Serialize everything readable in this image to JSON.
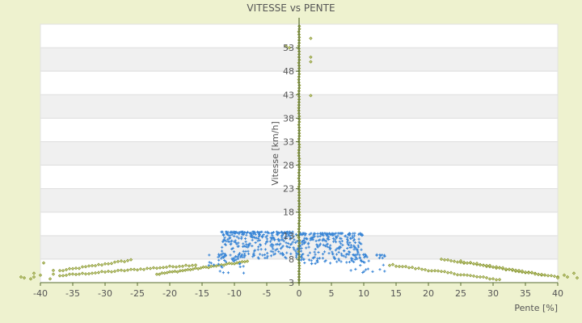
{
  "chart_data": {
    "type": "scatter",
    "title": "VITESSE vs PENTE",
    "xlabel": "Pente [%]",
    "ylabel": "Vitesse [km/h]",
    "xlim": [
      -40,
      40
    ],
    "ylim": [
      3,
      58
    ],
    "xticks": [
      -40,
      -35,
      -30,
      -25,
      -20,
      -15,
      -10,
      -5,
      0,
      5,
      10,
      15,
      20,
      25,
      30,
      35,
      40
    ],
    "yticks": [
      3,
      8,
      13,
      18,
      23,
      28,
      33,
      38,
      43,
      48,
      53
    ],
    "grid": "horizontal bands",
    "legend": "none",
    "colors": {
      "background": "#eef2cf",
      "plot_band_light": "#ffffff",
      "plot_band_dark": "#f0f0f0",
      "gridline": "#dddddd",
      "axis": "#556b2f",
      "series_blue": "#3a86d6",
      "series_olive": "#7a8a1a"
    },
    "series": [
      {
        "color": "#3a86d6",
        "marker": "plus",
        "clusters": [
          {
            "x_range": [
              -12,
              0
            ],
            "y_range": [
              8,
              13.8
            ],
            "count": 300
          },
          {
            "x_range": [
              0,
              10
            ],
            "y_range": [
              7,
              13.5
            ],
            "count": 260
          },
          {
            "x_range": [
              -14,
              -8
            ],
            "y_range": [
              5,
              9
            ],
            "count": 40
          },
          {
            "x_range": [
              8,
              14
            ],
            "y_range": [
              5,
              9
            ],
            "count": 40
          }
        ]
      },
      {
        "color": "#7a8a1a",
        "marker": "diamond",
        "curves": [
          {
            "x_start": -37,
            "x_end": -26,
            "y_start": 5.5,
            "y_end": 7.8,
            "step": 0.5
          },
          {
            "x_start": -37,
            "x_end": -16,
            "y_start": 4.5,
            "y_end": 6.8,
            "step": 0.5
          },
          {
            "x_start": -22,
            "x_end": -8,
            "y_start": 4.8,
            "y_end": 7.5,
            "step": 0.4
          },
          {
            "x_start": 14,
            "x_end": 31,
            "y_start": 6.8,
            "y_end": 3.6,
            "step": 0.5
          },
          {
            "x_start": 22,
            "x_end": 38,
            "y_start": 8.0,
            "y_end": 4.6,
            "step": 0.5
          },
          {
            "x_start": 25,
            "x_end": 40,
            "y_start": 7.5,
            "y_end": 4.2,
            "step": 0.5
          }
        ],
        "points": [
          {
            "x": -43,
            "y": 4.2
          },
          {
            "x": -42.5,
            "y": 4.0
          },
          {
            "x": -41.5,
            "y": 3.8
          },
          {
            "x": -41,
            "y": 5.0
          },
          {
            "x": -41,
            "y": 4.2
          },
          {
            "x": -40,
            "y": 4.6
          },
          {
            "x": -39.5,
            "y": 7.2
          },
          {
            "x": -38.5,
            "y": 3.8
          },
          {
            "x": -38,
            "y": 5.6
          },
          {
            "x": -38,
            "y": 4.8
          },
          {
            "x": 41.5,
            "y": 4.2
          },
          {
            "x": 42.5,
            "y": 5.0
          },
          {
            "x": 43,
            "y": 4.0
          },
          {
            "x": 41,
            "y": 4.6
          },
          {
            "x": 40,
            "y": 4.0
          },
          {
            "x": -2,
            "y": 53.3
          },
          {
            "x": -1.5,
            "y": 53.0
          },
          {
            "x": 1.8,
            "y": 51.0
          },
          {
            "x": 1.8,
            "y": 50.0
          },
          {
            "x": 1.8,
            "y": 42.8
          },
          {
            "x": 1.8,
            "y": 55.0
          }
        ],
        "vertical_line": {
          "x": 0,
          "y_range": [
            3,
            58
          ]
        }
      }
    ]
  }
}
